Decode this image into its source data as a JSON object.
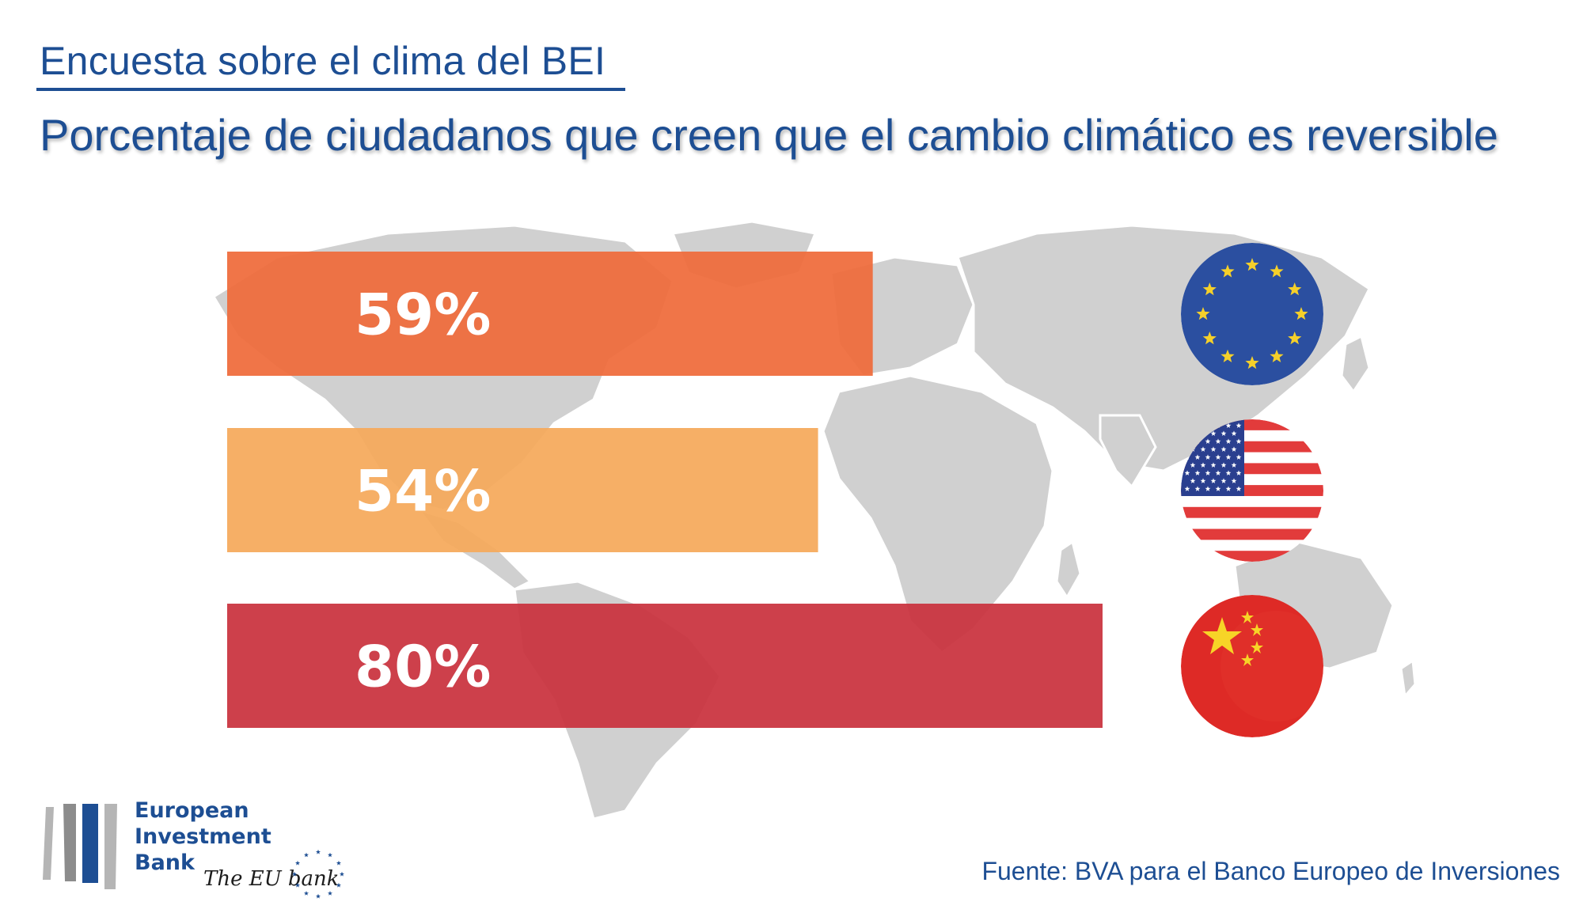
{
  "header": {
    "subtitle": "Encuesta sobre el clima del BEI",
    "title": "Porcentaje de ciudadanos que creen que el cambio climático es reversible"
  },
  "chart_data": {
    "type": "bar",
    "orientation": "horizontal",
    "title": "Porcentaje de ciudadanos que creen que el cambio climático es reversible",
    "categories": [
      "EU",
      "USA",
      "China"
    ],
    "values": [
      59,
      54,
      80
    ],
    "labels": [
      "59%",
      "54%",
      "80%"
    ],
    "colors": [
      "#ef6a3a",
      "#f5a95a",
      "#c9323d"
    ],
    "xlim": [
      0,
      100
    ],
    "flags": [
      "eu-flag-icon",
      "us-flag-icon",
      "china-flag-icon"
    ],
    "grid": false,
    "legend": "none"
  },
  "logo": {
    "line1": "European",
    "line2": "Investment",
    "line3": "Bank",
    "tagline": "The EU bank"
  },
  "footer": {
    "source": "Fuente: BVA para el Banco Europeo de Inversiones"
  },
  "colors": {
    "brand_blue": "#1d4e93",
    "map_gray": "#cfcfcf"
  }
}
